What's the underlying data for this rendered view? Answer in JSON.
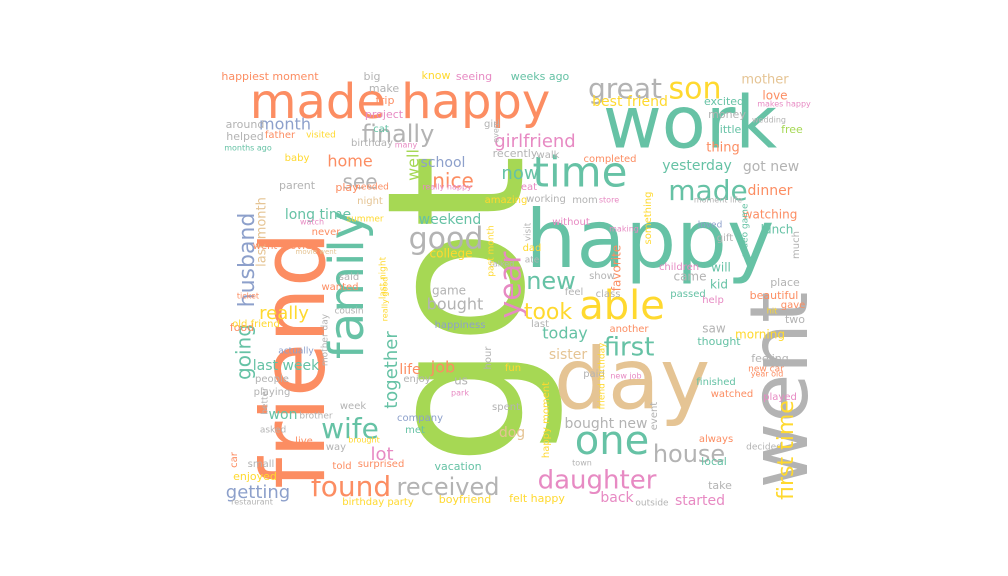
{
  "colors": {
    "teal": "#66c2a5",
    "orange": "#fc8d62",
    "blue": "#8da0cb",
    "pink": "#e78ac3",
    "green": "#a6d854",
    "yellow": "#ffd92f",
    "tan": "#e5c494",
    "gray": "#b3b3b3"
  },
  "words": [
    {
      "text": "got",
      "color": "green"
    },
    {
      "text": "happy",
      "color": "teal"
    },
    {
      "text": "work",
      "color": "teal"
    },
    {
      "text": "friend",
      "color": "orange"
    },
    {
      "text": "day",
      "color": "tan"
    },
    {
      "text": "went",
      "color": "gray"
    },
    {
      "text": "made happy",
      "color": "orange"
    },
    {
      "text": "family",
      "color": "teal"
    },
    {
      "text": "time",
      "color": "teal"
    },
    {
      "text": "able",
      "color": "yellow"
    },
    {
      "text": "one",
      "color": "teal"
    },
    {
      "text": "son",
      "color": "yellow"
    },
    {
      "text": "great",
      "color": "gray"
    },
    {
      "text": "finally",
      "color": "gray"
    },
    {
      "text": "good",
      "color": "gray"
    },
    {
      "text": "year",
      "color": "pink"
    },
    {
      "text": "made",
      "color": "teal"
    },
    {
      "text": "new",
      "color": "teal"
    },
    {
      "text": "husband",
      "color": "blue"
    },
    {
      "text": "wife",
      "color": "teal"
    },
    {
      "text": "found",
      "color": "orange"
    },
    {
      "text": "received",
      "color": "gray"
    },
    {
      "text": "daughter",
      "color": "pink"
    },
    {
      "text": "house",
      "color": "gray"
    },
    {
      "text": "took",
      "color": "yellow"
    },
    {
      "text": "first",
      "color": "teal"
    },
    {
      "text": "first time",
      "color": "yellow"
    },
    {
      "text": "girlfriend",
      "color": "pink"
    },
    {
      "text": "going",
      "color": "teal"
    },
    {
      "text": "see",
      "color": "gray"
    },
    {
      "text": "nice",
      "color": "orange"
    },
    {
      "text": "home",
      "color": "orange"
    },
    {
      "text": "now",
      "color": "teal"
    },
    {
      "text": "lot",
      "color": "pink"
    },
    {
      "text": "really",
      "color": "yellow"
    },
    {
      "text": "today",
      "color": "teal"
    },
    {
      "text": "getting",
      "color": "blue"
    },
    {
      "text": "month",
      "color": "blue"
    },
    {
      "text": "together",
      "color": "teal"
    },
    {
      "text": "long time",
      "color": "teal"
    },
    {
      "text": "last week",
      "color": "teal"
    },
    {
      "text": "bought new",
      "color": "gray"
    },
    {
      "text": "bought",
      "color": "gray"
    },
    {
      "text": "job",
      "color": "orange"
    },
    {
      "text": "life",
      "color": "orange"
    },
    {
      "text": "sister",
      "color": "tan"
    },
    {
      "text": "yesterday",
      "color": "teal"
    },
    {
      "text": "got new",
      "color": "gray"
    },
    {
      "text": "dinner",
      "color": "orange"
    },
    {
      "text": "mother",
      "color": "tan"
    },
    {
      "text": "best friend",
      "color": "yellow"
    },
    {
      "text": "weekend",
      "color": "teal"
    },
    {
      "text": "school",
      "color": "blue"
    },
    {
      "text": "well",
      "color": "green"
    },
    {
      "text": "dog",
      "color": "tan"
    },
    {
      "text": "started",
      "color": "pink"
    },
    {
      "text": "back",
      "color": "pink"
    },
    {
      "text": "last month",
      "color": "tan"
    },
    {
      "text": "won",
      "color": "teal"
    },
    {
      "text": "happiest moment",
      "color": "orange"
    },
    {
      "text": "weeks ago",
      "color": "teal"
    },
    {
      "text": "big",
      "color": "gray"
    },
    {
      "text": "know",
      "color": "yellow"
    },
    {
      "text": "seeing",
      "color": "pink"
    },
    {
      "text": "make",
      "color": "gray"
    },
    {
      "text": "trip",
      "color": "orange"
    },
    {
      "text": "project",
      "color": "pink"
    },
    {
      "text": "love",
      "color": "orange"
    },
    {
      "text": "excited",
      "color": "teal"
    },
    {
      "text": "money",
      "color": "gray"
    },
    {
      "text": "little",
      "color": "teal"
    },
    {
      "text": "free",
      "color": "green"
    },
    {
      "text": "makes happy",
      "color": "pink"
    },
    {
      "text": "wedding",
      "color": "gray"
    },
    {
      "text": "thing",
      "color": "orange"
    },
    {
      "text": "around",
      "color": "gray"
    },
    {
      "text": "helped",
      "color": "gray"
    },
    {
      "text": "father",
      "color": "orange"
    },
    {
      "text": "visited",
      "color": "yellow"
    },
    {
      "text": "months ago",
      "color": "teal"
    },
    {
      "text": "birthday",
      "color": "gray"
    },
    {
      "text": "cat",
      "color": "teal"
    },
    {
      "text": "many",
      "color": "pink"
    },
    {
      "text": "girl",
      "color": "gray"
    },
    {
      "text": "walk",
      "color": "gray"
    },
    {
      "text": "completed",
      "color": "orange"
    },
    {
      "text": "recently",
      "color": "gray"
    },
    {
      "text": "watching",
      "color": "orange"
    },
    {
      "text": "baby",
      "color": "yellow"
    },
    {
      "text": "parent",
      "color": "gray"
    },
    {
      "text": "play",
      "color": "orange"
    },
    {
      "text": "needed",
      "color": "orange"
    },
    {
      "text": "really happy",
      "color": "pink"
    },
    {
      "text": "eat",
      "color": "pink"
    },
    {
      "text": "amazing",
      "color": "yellow"
    },
    {
      "text": "working",
      "color": "gray"
    },
    {
      "text": "mom",
      "color": "gray"
    },
    {
      "text": "store",
      "color": "pink"
    },
    {
      "text": "moment life",
      "color": "gray"
    },
    {
      "text": "lunch",
      "color": "teal"
    },
    {
      "text": "night",
      "color": "tan"
    },
    {
      "text": "college",
      "color": "yellow"
    },
    {
      "text": "summer",
      "color": "yellow"
    },
    {
      "text": "never",
      "color": "orange"
    },
    {
      "text": "watch",
      "color": "pink"
    },
    {
      "text": "went movie",
      "color": "orange"
    },
    {
      "text": "movie went",
      "color": "tan"
    },
    {
      "text": "visit",
      "color": "gray"
    },
    {
      "text": "without",
      "color": "pink"
    },
    {
      "text": "making",
      "color": "pink"
    },
    {
      "text": "something",
      "color": "yellow"
    },
    {
      "text": "loved",
      "color": "blue"
    },
    {
      "text": "gift",
      "color": "gray"
    },
    {
      "text": "video game",
      "color": "teal"
    },
    {
      "text": "much",
      "color": "gray"
    },
    {
      "text": "talked",
      "color": "gray"
    },
    {
      "text": "past month",
      "color": "yellow"
    },
    {
      "text": "ate",
      "color": "gray"
    },
    {
      "text": "dad",
      "color": "yellow"
    },
    {
      "text": "favorite",
      "color": "orange"
    },
    {
      "text": "children",
      "color": "pink"
    },
    {
      "text": "came",
      "color": "gray"
    },
    {
      "text": "will",
      "color": "teal"
    },
    {
      "text": "kid",
      "color": "teal"
    },
    {
      "text": "place",
      "color": "gray"
    },
    {
      "text": "beautiful",
      "color": "orange"
    },
    {
      "text": "said",
      "color": "gray"
    },
    {
      "text": "wanted",
      "color": "orange"
    },
    {
      "text": "last night",
      "color": "yellow"
    },
    {
      "text": "really good",
      "color": "yellow"
    },
    {
      "text": "game",
      "color": "gray"
    },
    {
      "text": "cousin",
      "color": "gray"
    },
    {
      "text": "happiness",
      "color": "blue"
    },
    {
      "text": "food",
      "color": "orange"
    },
    {
      "text": "ticket",
      "color": "orange"
    },
    {
      "text": "old friend",
      "color": "yellow"
    },
    {
      "text": "show",
      "color": "gray"
    },
    {
      "text": "feel",
      "color": "gray"
    },
    {
      "text": "class",
      "color": "gray"
    },
    {
      "text": "passed",
      "color": "teal"
    },
    {
      "text": "help",
      "color": "pink"
    },
    {
      "text": "gave",
      "color": "orange"
    },
    {
      "text": "two",
      "color": "gray"
    },
    {
      "text": "hit",
      "color": "yellow"
    },
    {
      "text": "saw",
      "color": "gray"
    },
    {
      "text": "morning",
      "color": "yellow"
    },
    {
      "text": "another",
      "color": "orange"
    },
    {
      "text": "thought",
      "color": "teal"
    },
    {
      "text": "feeling",
      "color": "gray"
    },
    {
      "text": "new car",
      "color": "orange"
    },
    {
      "text": "year old",
      "color": "orange"
    },
    {
      "text": "actually",
      "color": "blue"
    },
    {
      "text": "mother day",
      "color": "gray"
    },
    {
      "text": "us",
      "color": "gray"
    },
    {
      "text": "hour",
      "color": "gray"
    },
    {
      "text": "fun",
      "color": "yellow"
    },
    {
      "text": "people",
      "color": "gray"
    },
    {
      "text": "playing",
      "color": "gray"
    },
    {
      "text": "enjoy",
      "color": "gray"
    },
    {
      "text": "paid",
      "color": "gray"
    },
    {
      "text": "new job",
      "color": "pink"
    },
    {
      "text": "friend birthday",
      "color": "yellow"
    },
    {
      "text": "finished",
      "color": "teal"
    },
    {
      "text": "watched",
      "color": "orange"
    },
    {
      "text": "played",
      "color": "pink"
    },
    {
      "text": "better",
      "color": "gray"
    },
    {
      "text": "brother",
      "color": "gray"
    },
    {
      "text": "week",
      "color": "gray"
    },
    {
      "text": "park",
      "color": "pink"
    },
    {
      "text": "spent",
      "color": "gray"
    },
    {
      "text": "happy moment",
      "color": "yellow"
    },
    {
      "text": "event",
      "color": "gray"
    },
    {
      "text": "always",
      "color": "orange"
    },
    {
      "text": "decided",
      "color": "gray"
    },
    {
      "text": "asked",
      "color": "gray"
    },
    {
      "text": "live",
      "color": "orange"
    },
    {
      "text": "way",
      "color": "gray"
    },
    {
      "text": "brought",
      "color": "yellow"
    },
    {
      "text": "met",
      "color": "teal"
    },
    {
      "text": "company",
      "color": "blue"
    },
    {
      "text": "small",
      "color": "gray"
    },
    {
      "text": "car",
      "color": "orange"
    },
    {
      "text": "told",
      "color": "orange"
    },
    {
      "text": "surprised",
      "color": "orange"
    },
    {
      "text": "vacation",
      "color": "teal"
    },
    {
      "text": "town",
      "color": "gray"
    },
    {
      "text": "local",
      "color": "teal"
    },
    {
      "text": "enjoyed",
      "color": "yellow"
    },
    {
      "text": "restaurant",
      "color": "gray"
    },
    {
      "text": "birthday party",
      "color": "yellow"
    },
    {
      "text": "boyfriend",
      "color": "yellow"
    },
    {
      "text": "felt happy",
      "color": "yellow"
    },
    {
      "text": "outside",
      "color": "gray"
    },
    {
      "text": "take",
      "color": "gray"
    },
    {
      "text": "even",
      "color": "gray"
    },
    {
      "text": "last",
      "color": "gray"
    }
  ]
}
